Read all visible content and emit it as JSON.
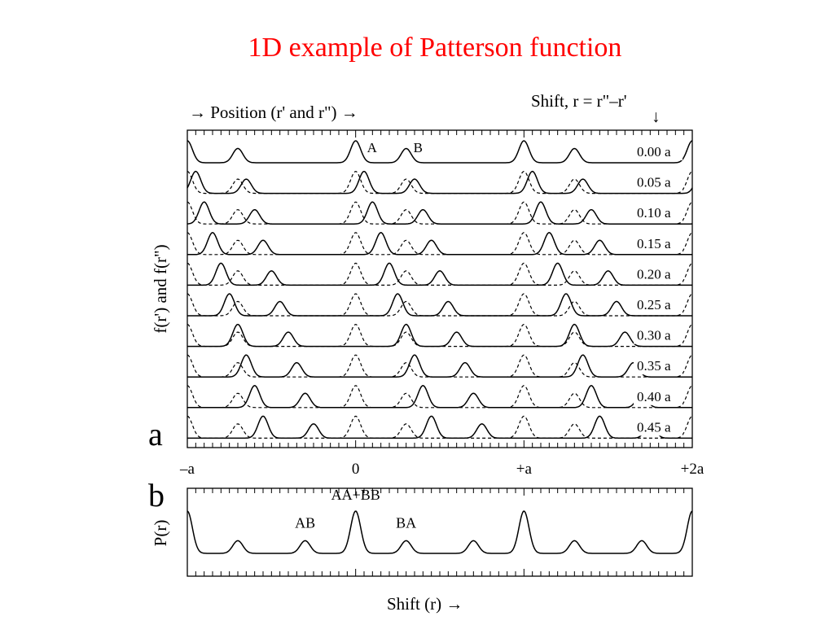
{
  "slide": {
    "title": "1D example of Patterson function"
  },
  "chart_data": [
    {
      "panel": "a",
      "type": "line",
      "top_label": "→  Position (r' and r\")  →",
      "shift_label": "Shift, r = r\"–r'",
      "shift_arrow": "↓",
      "ylabel": "f(r') and f(r\")",
      "xlim": [
        -1,
        2
      ],
      "x_ticks": [
        -1,
        0,
        1,
        2
      ],
      "x_tick_labels": [
        "–a",
        "0",
        "+a",
        "+2a"
      ],
      "atoms": [
        {
          "label": "A",
          "position": 0.0,
          "height": 1.0
        },
        {
          "label": "B",
          "position": 0.3,
          "height": 0.65
        }
      ],
      "shifts": [
        0.0,
        0.05,
        0.1,
        0.15,
        0.2,
        0.25,
        0.3,
        0.35,
        0.4,
        0.45
      ],
      "shift_labels": [
        "0.00 a",
        "0.05 a",
        "0.10 a",
        "0.15 a",
        "0.20 a",
        "0.25 a",
        "0.30 a",
        "0.35 a",
        "0.40 a",
        "0.45 a"
      ],
      "series": [
        {
          "name": "f(r')",
          "style": "dashed"
        },
        {
          "name": "f(r\")",
          "style": "solid"
        }
      ]
    },
    {
      "panel": "b",
      "type": "line",
      "ylabel": "P(r)",
      "xlabel": "Shift (r)  →",
      "xlim": [
        -1,
        2
      ],
      "peaks": [
        {
          "label": "AA+BB",
          "position": 0.0,
          "height": 1.0
        },
        {
          "label": "AB",
          "position": -0.3,
          "height": 0.3
        },
        {
          "label": "BA",
          "position": 0.3,
          "height": 0.3
        }
      ]
    }
  ]
}
